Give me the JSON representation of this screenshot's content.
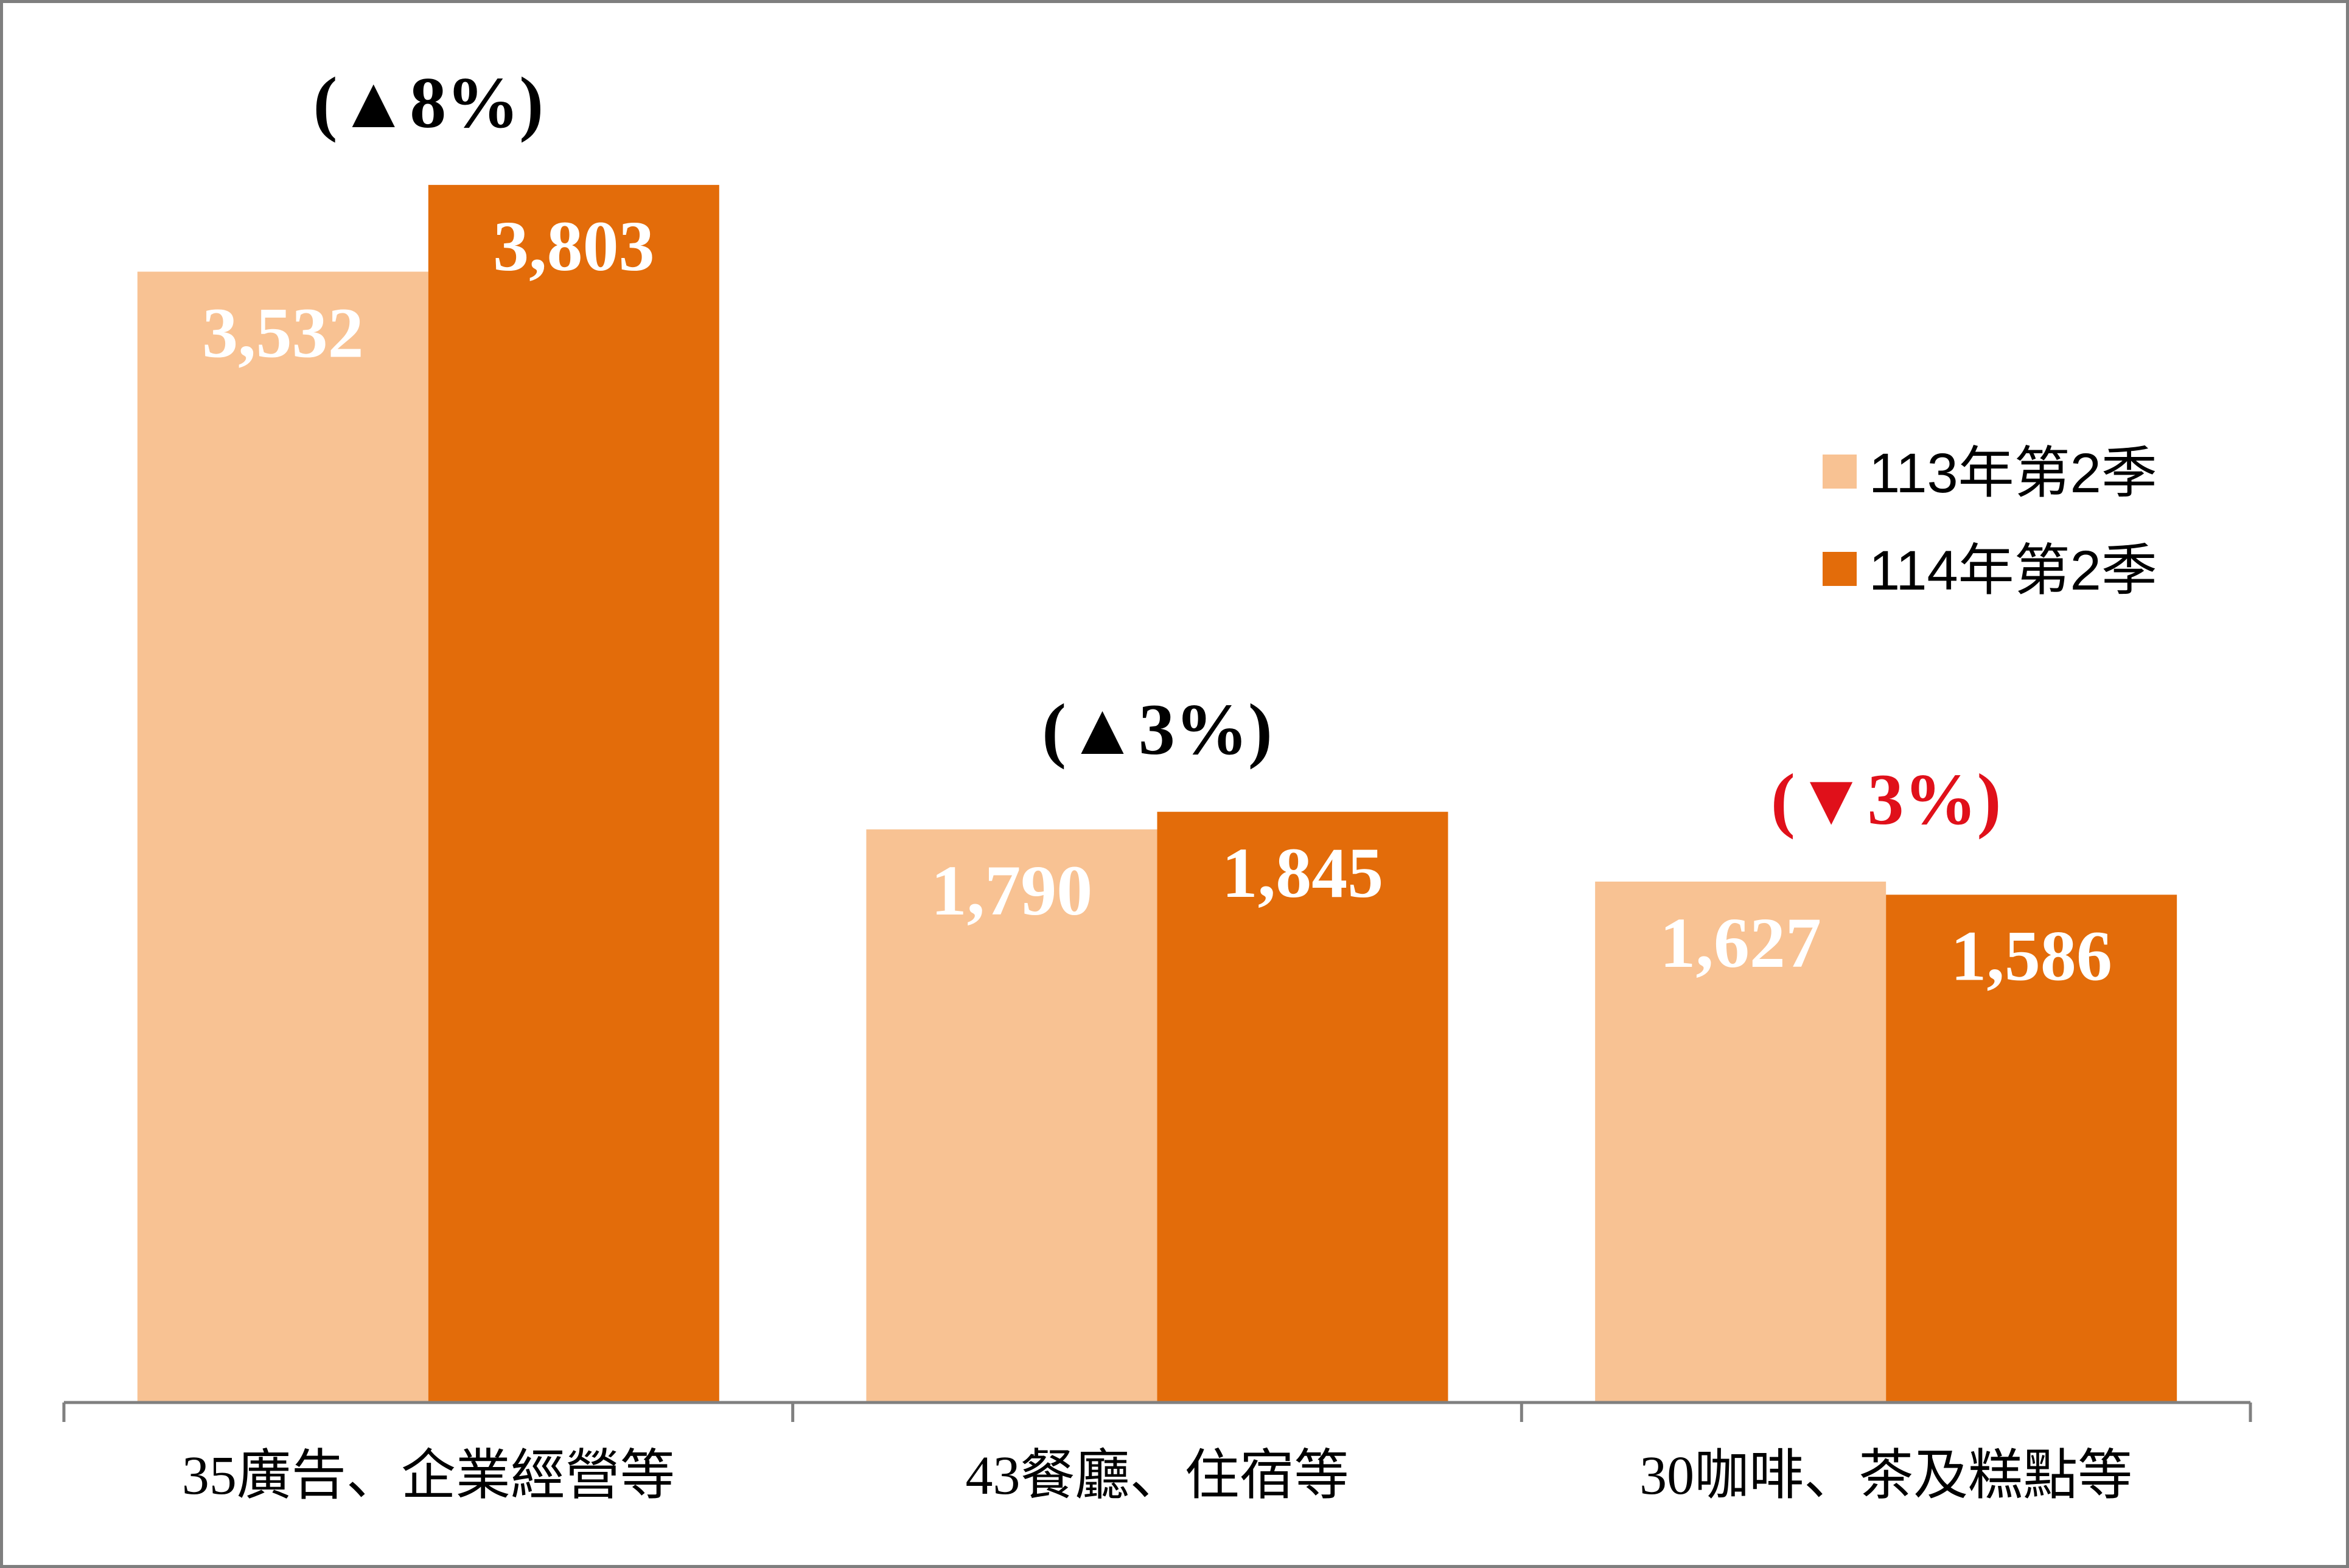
{
  "chart_data": {
    "type": "bar",
    "title": "",
    "xlabel": "",
    "ylabel": "",
    "ylim": [
      0,
      4200
    ],
    "grid": false,
    "legend_position": "right",
    "categories": [
      "35廣告、企業經營等",
      "43餐廳、住宿等",
      "30咖啡、茶及糕點等"
    ],
    "series": [
      {
        "name": "113年第2季",
        "color": "#F8C293",
        "values": [
          3532,
          1790,
          1627
        ]
      },
      {
        "name": "114年第2季",
        "color": "#E36C0A",
        "values": [
          3803,
          1845,
          1586
        ]
      }
    ],
    "value_labels": [
      [
        "3,532",
        "1,790",
        "1,627"
      ],
      [
        "3,803",
        "1,845",
        "1,586"
      ]
    ],
    "annotations": [
      {
        "category_index": 0,
        "text": "(▲8%)",
        "color": "#000000"
      },
      {
        "category_index": 1,
        "text": "(▲3%)",
        "color": "#000000"
      },
      {
        "category_index": 2,
        "text": "(▼3%)",
        "color": "#E0101A"
      }
    ]
  }
}
